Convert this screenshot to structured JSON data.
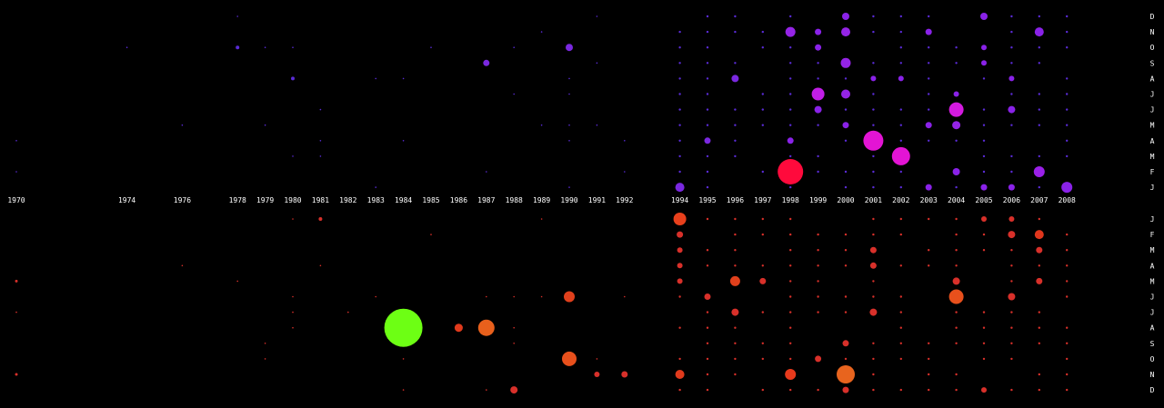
{
  "chart_data": {
    "type": "scatter",
    "title": "",
    "colors": {
      "background": "#000000",
      "label": "#ffffff",
      "small_upper": "#5a2bd6",
      "small_lower": "#d8302a"
    },
    "x_ticks": [
      1970,
      1974,
      1976,
      1978,
      1979,
      1980,
      1981,
      1982,
      1983,
      1984,
      1985,
      1986,
      1987,
      1988,
      1989,
      1990,
      1991,
      1992,
      1994,
      1995,
      1996,
      1997,
      1998,
      1999,
      2000,
      2001,
      2002,
      2003,
      2004,
      2005,
      2006,
      2007,
      2008
    ],
    "upper_month_labels": [
      "D",
      "N",
      "O",
      "S",
      "A",
      "J",
      "J",
      "M",
      "A",
      "M",
      "F",
      "J"
    ],
    "lower_month_labels": [
      "J",
      "F",
      "M",
      "A",
      "M",
      "J",
      "J",
      "A",
      "S",
      "O",
      "N",
      "D"
    ],
    "upper_points": [
      {
        "year": 1998,
        "month": 2,
        "size": 14,
        "color": "#ff0a3c"
      },
      {
        "year": 2001,
        "month": 4,
        "size": 11,
        "color": "#e314d4"
      },
      {
        "year": 2002,
        "month": 3,
        "size": 10,
        "color": "#e314d4"
      },
      {
        "year": 2004,
        "month": 6,
        "size": 8,
        "color": "#d41ae0"
      },
      {
        "year": 1999,
        "month": 7,
        "size": 7,
        "color": "#c11ee6"
      },
      {
        "year": 2007,
        "month": 2,
        "size": 6,
        "color": "#9a20e8"
      },
      {
        "year": 2008,
        "month": 1,
        "size": 6,
        "color": "#8a22e8"
      },
      {
        "year": 2000,
        "month": 9,
        "size": 5.5,
        "color": "#9524e6"
      },
      {
        "year": 1998,
        "month": 11,
        "size": 5.5,
        "color": "#9524e6"
      },
      {
        "year": 1994,
        "month": 1,
        "size": 5,
        "color": "#7a28e0"
      },
      {
        "year": 2000,
        "month": 11,
        "size": 5,
        "color": "#9524e6"
      },
      {
        "year": 2000,
        "month": 7,
        "size": 5,
        "color": "#9524e6"
      },
      {
        "year": 2007,
        "month": 11,
        "size": 5,
        "color": "#8a22e8"
      },
      {
        "year": 1990,
        "month": 10,
        "size": 4,
        "color": "#7a28e0"
      },
      {
        "year": 1987,
        "month": 9,
        "size": 3.5,
        "color": "#7a28e0"
      },
      {
        "year": 1996,
        "month": 8,
        "size": 4,
        "color": "#7a28e0"
      },
      {
        "year": 2000,
        "month": 12,
        "size": 4,
        "color": "#8a22e8"
      },
      {
        "year": 2005,
        "month": 12,
        "size": 4,
        "color": "#8a22e8"
      },
      {
        "year": 2004,
        "month": 5,
        "size": 4.5,
        "color": "#9524e6"
      },
      {
        "year": 2006,
        "month": 6,
        "size": 4,
        "color": "#8a22e8"
      },
      {
        "year": 1999,
        "month": 6,
        "size": 4,
        "color": "#8a22e8"
      },
      {
        "year": 1998,
        "month": 4,
        "size": 3.5,
        "color": "#8a22e8"
      },
      {
        "year": 2004,
        "month": 2,
        "size": 4,
        "color": "#8a22e8"
      },
      {
        "year": 1999,
        "month": 10,
        "size": 3.5,
        "color": "#8a22e8"
      },
      {
        "year": 1999,
        "month": 11,
        "size": 3.5,
        "color": "#8a22e8"
      },
      {
        "year": 2003,
        "month": 11,
        "size": 3.5,
        "color": "#8a22e8"
      },
      {
        "year": 2003,
        "month": 1,
        "size": 3.5,
        "color": "#8a22e8"
      },
      {
        "year": 2006,
        "month": 1,
        "size": 3.5,
        "color": "#8a22e8"
      },
      {
        "year": 2005,
        "month": 1,
        "size": 3.5,
        "color": "#8a22e8"
      },
      {
        "year": 2000,
        "month": 5,
        "size": 3.5,
        "color": "#8a22e8"
      },
      {
        "year": 2003,
        "month": 5,
        "size": 3.5,
        "color": "#8a22e8"
      },
      {
        "year": 1995,
        "month": 4,
        "size": 3.5,
        "color": "#7a28e0"
      },
      {
        "year": 2005,
        "month": 9,
        "size": 3,
        "color": "#8a22e8"
      },
      {
        "year": 2005,
        "month": 10,
        "size": 3,
        "color": "#8a22e8"
      },
      {
        "year": 2006,
        "month": 8,
        "size": 3,
        "color": "#8a22e8"
      },
      {
        "year": 2001,
        "month": 8,
        "size": 3,
        "color": "#8a22e8"
      },
      {
        "year": 2002,
        "month": 8,
        "size": 3,
        "color": "#8a22e8"
      },
      {
        "year": 2004,
        "month": 7,
        "size": 3,
        "color": "#8a22e8"
      },
      {
        "year": 1980,
        "month": 8,
        "size": 2,
        "color": "#5a2bd6"
      },
      {
        "year": 1978,
        "month": 10,
        "size": 2,
        "color": "#5a2bd6"
      }
    ],
    "lower_points": [
      {
        "year": 1984,
        "month": 8,
        "size": 21,
        "color": "#6dff14"
      },
      {
        "year": 2000,
        "month": 11,
        "size": 10,
        "color": "#e8641e"
      },
      {
        "year": 1987,
        "month": 8,
        "size": 9,
        "color": "#e8601c"
      },
      {
        "year": 1990,
        "month": 10,
        "size": 8,
        "color": "#e8501c"
      },
      {
        "year": 2004,
        "month": 6,
        "size": 8,
        "color": "#e8501c"
      },
      {
        "year": 1994,
        "month": 1,
        "size": 7,
        "color": "#e8401c"
      },
      {
        "year": 1990,
        "month": 6,
        "size": 6,
        "color": "#e0401c"
      },
      {
        "year": 1996,
        "month": 5,
        "size": 5.5,
        "color": "#e0401c"
      },
      {
        "year": 1998,
        "month": 11,
        "size": 6,
        "color": "#e83a1c"
      },
      {
        "year": 1994,
        "month": 11,
        "size": 5,
        "color": "#e03a1c"
      },
      {
        "year": 1986,
        "month": 8,
        "size": 4.5,
        "color": "#e03a1c"
      },
      {
        "year": 2007,
        "month": 2,
        "size": 5,
        "color": "#e0361c"
      },
      {
        "year": 2001,
        "month": 7,
        "size": 4,
        "color": "#d8302a"
      },
      {
        "year": 1996,
        "month": 7,
        "size": 4,
        "color": "#d8302a"
      },
      {
        "year": 1988,
        "month": 12,
        "size": 4,
        "color": "#d8302a"
      },
      {
        "year": 2006,
        "month": 2,
        "size": 4,
        "color": "#d8302a"
      },
      {
        "year": 2006,
        "month": 6,
        "size": 4,
        "color": "#d8302a"
      },
      {
        "year": 2004,
        "month": 5,
        "size": 4,
        "color": "#d8302a"
      },
      {
        "year": 1997,
        "month": 5,
        "size": 3.5,
        "color": "#d8302a"
      },
      {
        "year": 1999,
        "month": 10,
        "size": 3.5,
        "color": "#d8302a"
      },
      {
        "year": 2000,
        "month": 9,
        "size": 3.5,
        "color": "#d8302a"
      },
      {
        "year": 2007,
        "month": 3,
        "size": 3.5,
        "color": "#d8302a"
      },
      {
        "year": 2007,
        "month": 5,
        "size": 3.5,
        "color": "#d8302a"
      },
      {
        "year": 2001,
        "month": 3,
        "size": 3.5,
        "color": "#d8302a"
      },
      {
        "year": 2001,
        "month": 4,
        "size": 3.5,
        "color": "#d8302a"
      },
      {
        "year": 1994,
        "month": 2,
        "size": 3.5,
        "color": "#d8302a"
      },
      {
        "year": 1994,
        "month": 3,
        "size": 3,
        "color": "#d8302a"
      },
      {
        "year": 1994,
        "month": 4,
        "size": 3,
        "color": "#d8302a"
      },
      {
        "year": 1994,
        "month": 5,
        "size": 3,
        "color": "#d8302a"
      },
      {
        "year": 1995,
        "month": 6,
        "size": 3.5,
        "color": "#d8302a"
      },
      {
        "year": 1991,
        "month": 11,
        "size": 3,
        "color": "#d8302a"
      },
      {
        "year": 1992,
        "month": 11,
        "size": 3.5,
        "color": "#d8302a"
      },
      {
        "year": 2005,
        "month": 12,
        "size": 3,
        "color": "#d8302a"
      },
      {
        "year": 2000,
        "month": 12,
        "size": 3.5,
        "color": "#d8302a"
      },
      {
        "year": 2005,
        "month": 1,
        "size": 3,
        "color": "#d8302a"
      },
      {
        "year": 2006,
        "month": 1,
        "size": 3,
        "color": "#d8302a"
      },
      {
        "year": 1981,
        "month": 1,
        "size": 2,
        "color": "#d8302a"
      },
      {
        "year": 1970,
        "month": 5,
        "size": 1.5,
        "color": "#d8302a"
      },
      {
        "year": 1970,
        "month": 11,
        "size": 1.5,
        "color": "#d8302a"
      }
    ]
  }
}
